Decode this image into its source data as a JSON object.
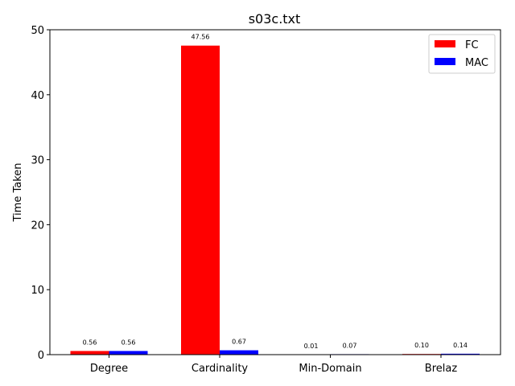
{
  "chart_data": {
    "type": "bar",
    "title": "s03c.txt",
    "xlabel": "",
    "ylabel": "Time Taken",
    "categories": [
      "Degree",
      "Cardinality",
      "Min-Domain",
      "Brelaz"
    ],
    "series": [
      {
        "name": "FC",
        "color": "#ff0000",
        "values": [
          0.56,
          47.56,
          0.01,
          0.1
        ],
        "labels": [
          "0.56",
          "47.56",
          "0.01",
          "0.10"
        ]
      },
      {
        "name": "MAC",
        "color": "#0000ff",
        "values": [
          0.56,
          0.67,
          0.07,
          0.14
        ],
        "labels": [
          "0.56",
          "0.67",
          "0.07",
          "0.14"
        ]
      }
    ],
    "ylim": [
      0,
      50
    ],
    "yticks": [
      "0",
      "10",
      "20",
      "30",
      "40",
      "50"
    ],
    "grid": false,
    "legend": "top-right"
  }
}
